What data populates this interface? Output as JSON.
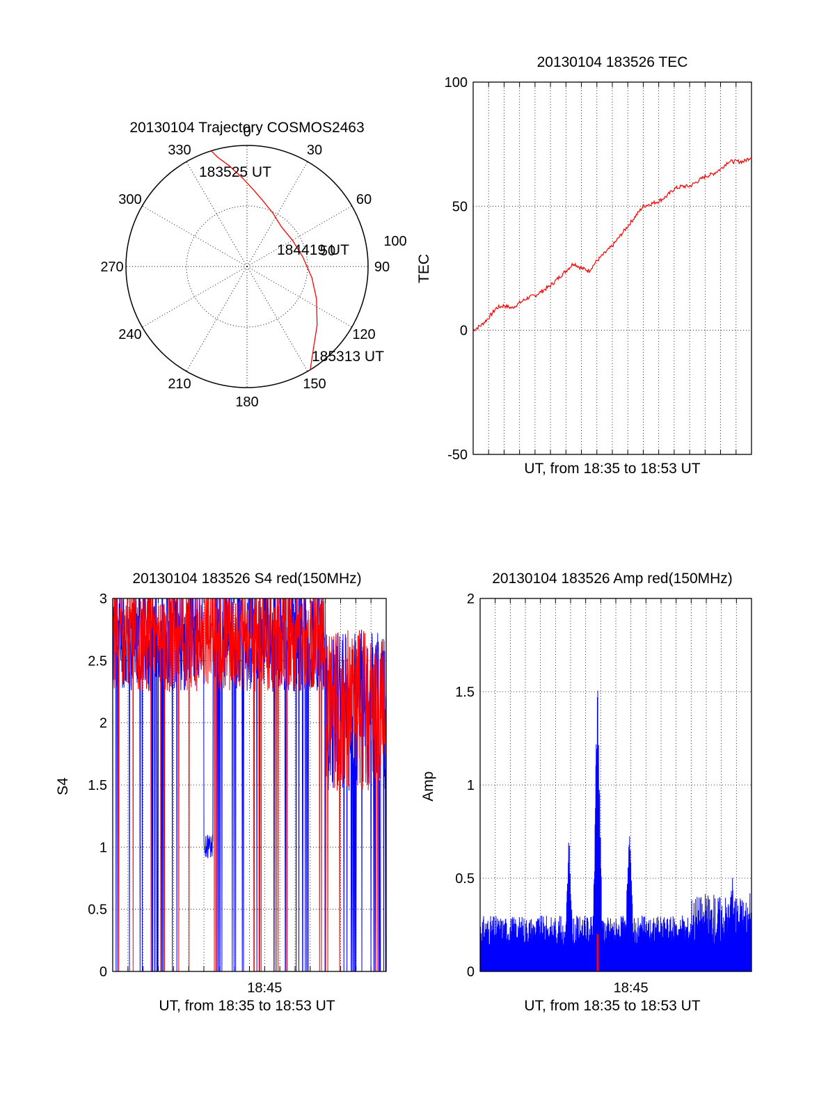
{
  "colors": {
    "red": "#ff0000",
    "blue": "#0000ff",
    "axis": "#000000",
    "grid": "#000000"
  },
  "chart_data": [
    {
      "id": "trajectory",
      "type": "polar",
      "title": "20130104 Trajectory COSMOS2463",
      "azimuth_labels": [
        "0",
        "30",
        "60",
        "90",
        "120",
        "150",
        "180",
        "210",
        "240",
        "270",
        "300",
        "330"
      ],
      "radial_ring_labels": [
        "50",
        "100"
      ],
      "grid": true,
      "series": [
        {
          "color": "#ff0000",
          "points_az_el": [
            [
              -17.2,
              0
            ],
            [
              -15,
              6
            ],
            [
              -10,
              14
            ],
            [
              -3,
              24
            ],
            [
              5,
              33
            ],
            [
              14,
              40
            ],
            [
              26,
              46
            ],
            [
              41,
              51
            ],
            [
              60,
              51
            ],
            [
              80,
              48
            ],
            [
              100,
              41
            ],
            [
              115,
              33
            ],
            [
              130,
              22
            ],
            [
              145,
              6
            ],
            [
              148.5,
              0
            ]
          ]
        }
      ],
      "annotations": [
        {
          "text": "183525 UT",
          "at_az_el": [
            -7,
            27
          ]
        },
        {
          "text": "184419 UT",
          "at_az_el": [
            70,
            53
          ]
        },
        {
          "text": "185313 UT",
          "at_az_el": [
            140,
            0
          ]
        }
      ]
    },
    {
      "id": "tec",
      "type": "line",
      "title": "20130104 183526 TEC",
      "xlabel": "UT, from 18:35 to 18:53 UT",
      "ylabel": "TEC",
      "xlim": [
        0,
        18
      ],
      "ylim": [
        -50,
        100
      ],
      "yticks": [
        -50,
        0,
        50,
        100
      ],
      "grid": true,
      "series": [
        {
          "color": "#ff0000",
          "x": [
            0,
            0.5,
            1,
            1.5,
            2,
            2.5,
            3,
            3.5,
            4,
            4.5,
            5,
            5.5,
            6,
            6.5,
            7,
            7.5,
            8,
            8.5,
            9,
            9.5,
            10,
            10.5,
            11,
            11.5,
            12,
            12.5,
            13,
            13.5,
            14,
            14.5,
            15,
            15.5,
            16,
            16.5,
            17,
            17.5,
            18
          ],
          "y": [
            0,
            2,
            5,
            9,
            10,
            9,
            11,
            13,
            14,
            16,
            18,
            21,
            24,
            27,
            25,
            24,
            28,
            31,
            34,
            38,
            42,
            46,
            50,
            51,
            52,
            54,
            57,
            58,
            58,
            60,
            62,
            63,
            65,
            68,
            68,
            68,
            70
          ]
        }
      ]
    },
    {
      "id": "s4",
      "type": "line",
      "title": "20130104 183526 S4 red(150MHz)",
      "xlabel": "UT, from 18:35 to 18:53 UT",
      "ylabel": "S4",
      "xlim": [
        0,
        18
      ],
      "ylim": [
        0,
        3
      ],
      "yticks": [
        0,
        0.5,
        1,
        1.5,
        2,
        2.5,
        3
      ],
      "xticks": [
        {
          "value": 10,
          "label": "18:45"
        }
      ],
      "grid": true,
      "series": [
        {
          "color": "#0000ff",
          "description_x": "0-18 min",
          "baseline": [
            0,
            2.6
          ],
          "sample_count": 900
        },
        {
          "color": "#ff0000",
          "baseline": [
            0,
            2.7
          ],
          "sample_count": 900
        }
      ]
    },
    {
      "id": "amp",
      "type": "line",
      "title": "20130104 183526 Amp red(150MHz)",
      "xlabel": "UT, from 18:35 to 18:53 UT",
      "ylabel": "Amp",
      "xlim": [
        0,
        18
      ],
      "ylim": [
        0,
        2
      ],
      "yticks": [
        0,
        0.5,
        1,
        1.5,
        2
      ],
      "xticks": [
        {
          "value": 10,
          "label": "18:45"
        }
      ],
      "grid": true,
      "series": [
        {
          "color": "#0000ff",
          "peaks": [
            [
              5.9,
              0.76
            ],
            [
              7.8,
              1.75
            ],
            [
              9.9,
              0.83
            ],
            [
              16.7,
              0.58
            ]
          ],
          "noise_level": 0.2
        },
        {
          "color": "#ff0000",
          "peaks": [
            [
              7.8,
              0.2
            ]
          ]
        }
      ]
    }
  ]
}
